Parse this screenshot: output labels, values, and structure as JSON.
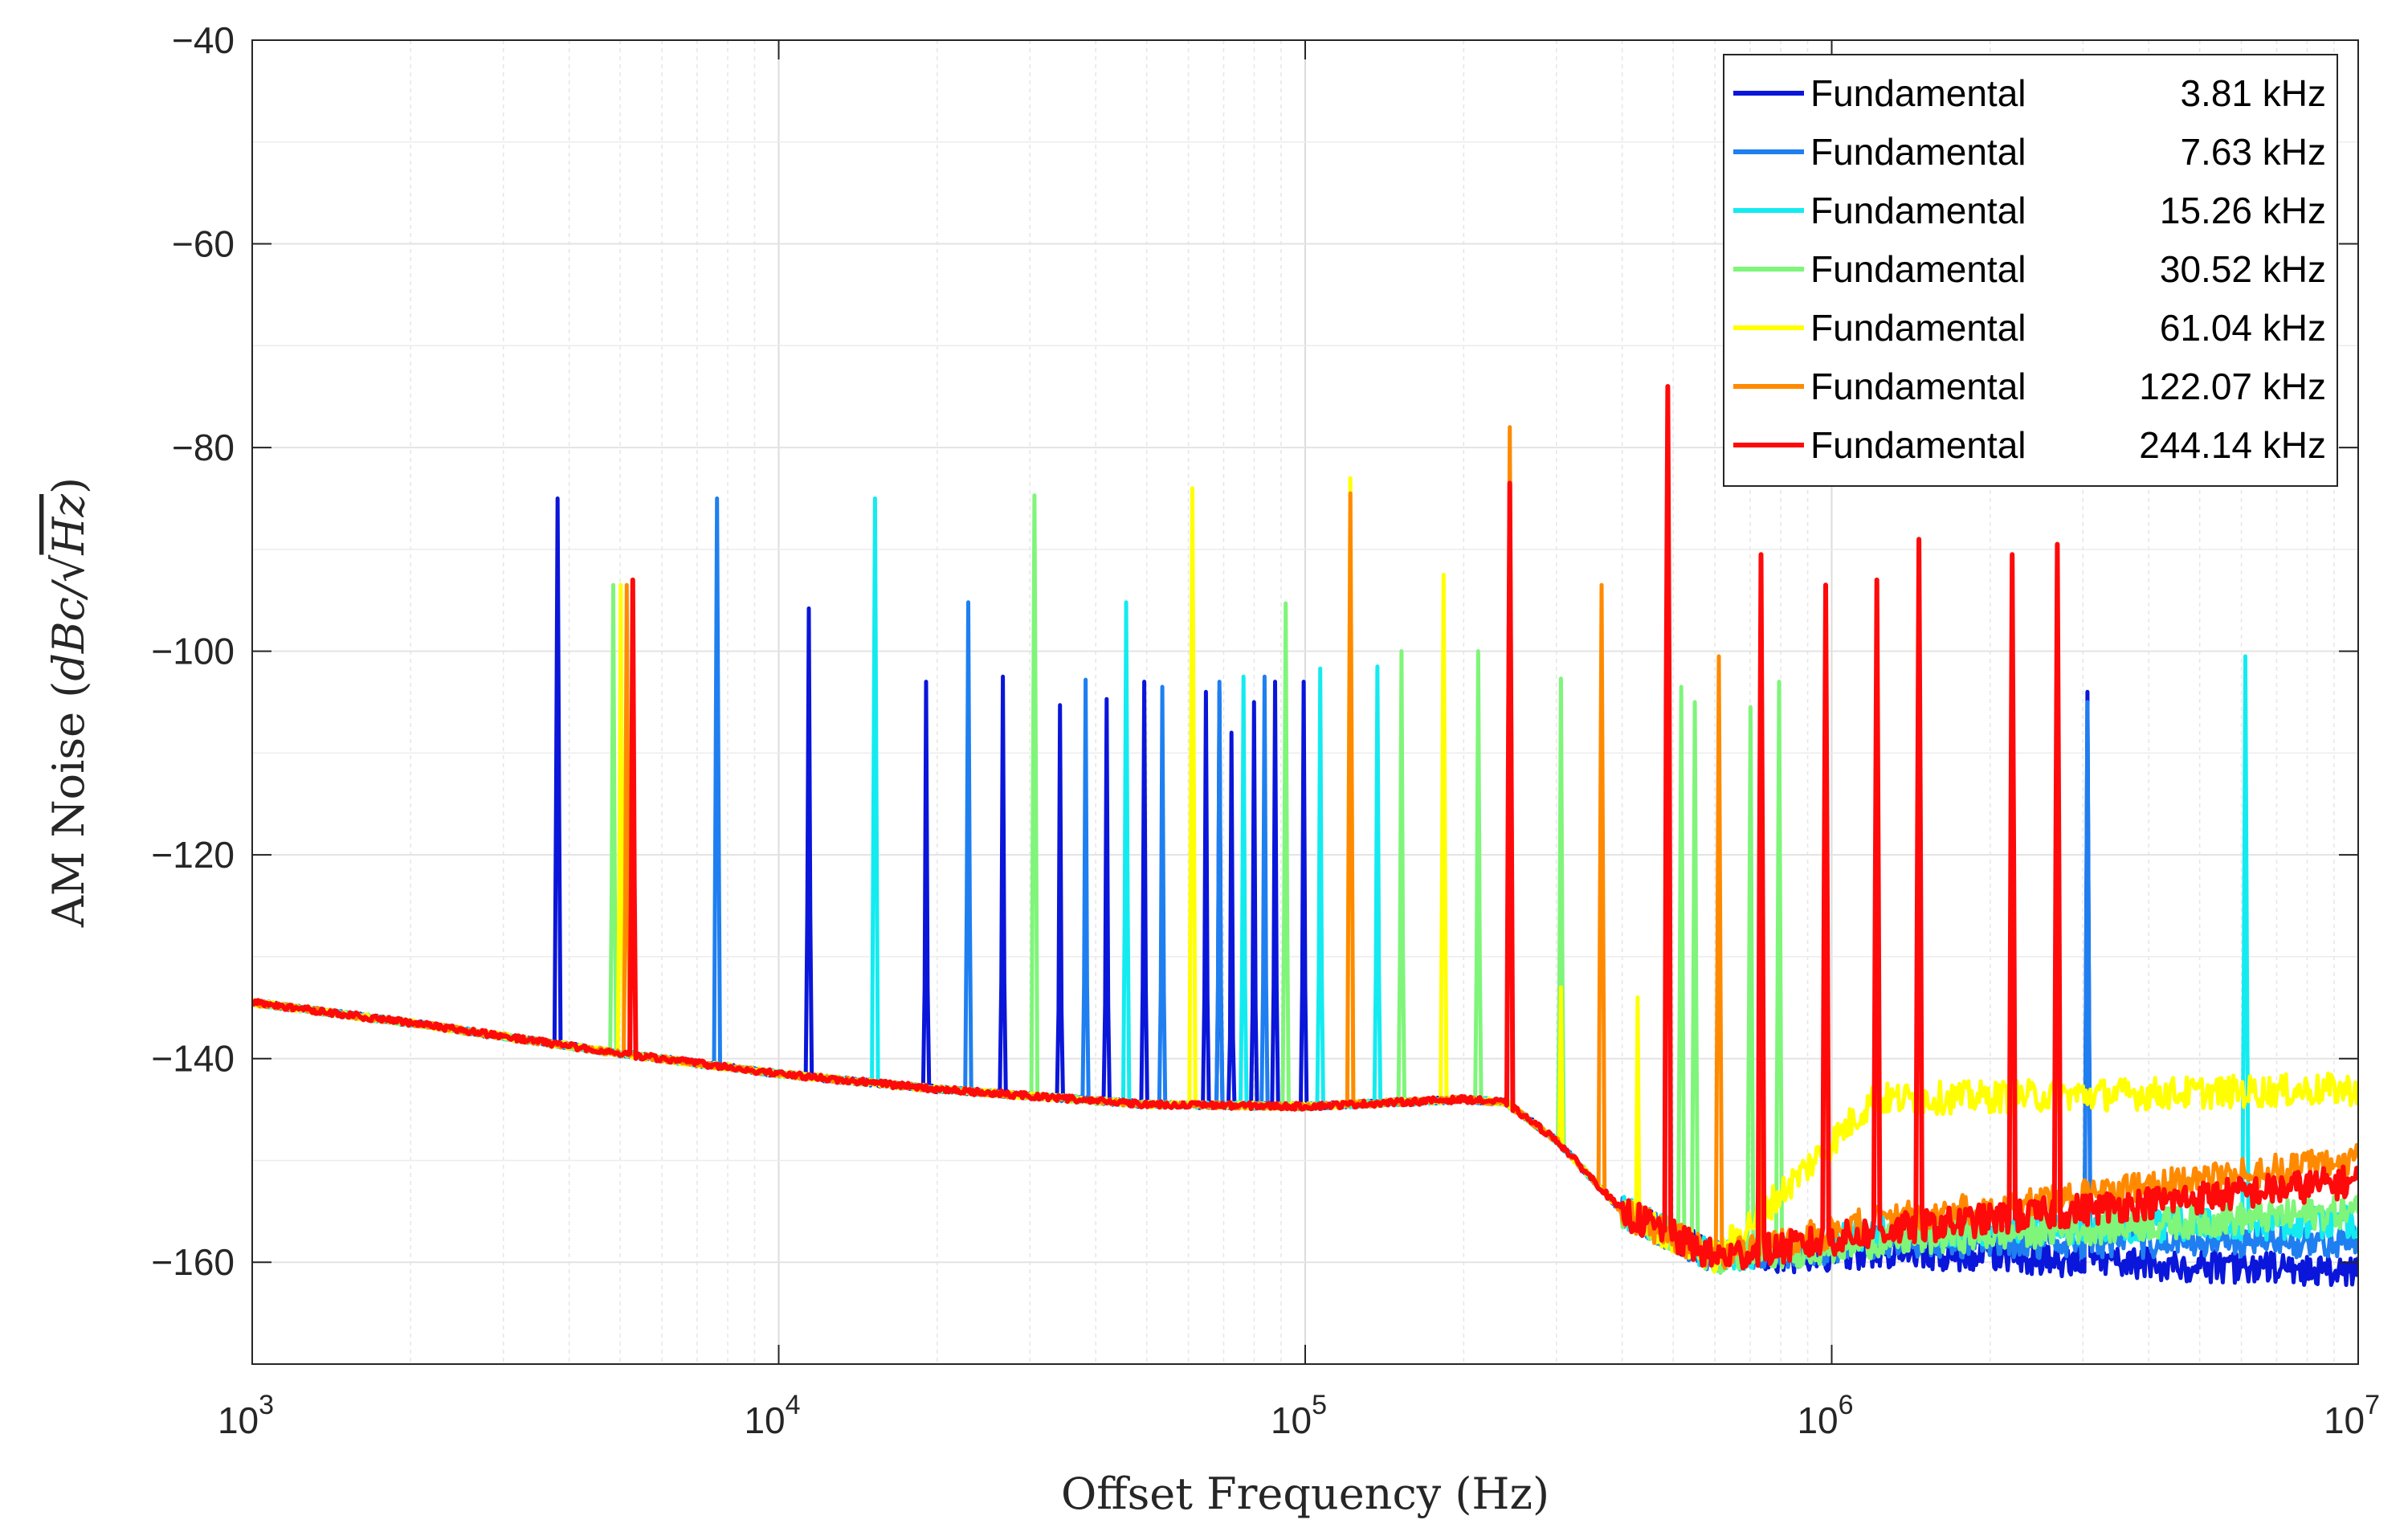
{
  "chart_data": {
    "type": "line",
    "xscale": "log",
    "xlim": [
      1000,
      10000000
    ],
    "ylim": [
      -170,
      -40
    ],
    "xlabel": "Offset Frequency (Hz)",
    "ylabel": "AM Noise (dBc/√Hz)",
    "ylabel_parts": {
      "prefix": "AM Noise (",
      "math": "dBc/",
      "radicand": "Hz",
      "suffix": ")"
    },
    "grid": true,
    "legend_position": "top-right",
    "x_ticks": [
      {
        "value": 1000,
        "base": "10",
        "exp": "3"
      },
      {
        "value": 10000,
        "base": "10",
        "exp": "4"
      },
      {
        "value": 100000,
        "base": "10",
        "exp": "5"
      },
      {
        "value": 1000000,
        "base": "10",
        "exp": "6"
      },
      {
        "value": 10000000,
        "base": "10",
        "exp": "7"
      }
    ],
    "y_ticks": [
      {
        "value": -40,
        "label": "−40"
      },
      {
        "value": -60,
        "label": "−60"
      },
      {
        "value": -80,
        "label": "−80"
      },
      {
        "value": -100,
        "label": "−100"
      },
      {
        "value": -120,
        "label": "−120"
      },
      {
        "value": -140,
        "label": "−140"
      },
      {
        "value": -160,
        "label": "−160"
      }
    ],
    "baseline": {
      "x": [
        1000,
        2000,
        5000,
        10000,
        20000,
        50000,
        100000,
        200000,
        240000,
        300000,
        400000,
        600000,
        1000000,
        3000000,
        10000000
      ],
      "y": [
        -134.5,
        -136.5,
        -139.5,
        -141.5,
        -143,
        -144.5,
        -144.7,
        -144,
        -144.3,
        -148,
        -155,
        -159.5,
        -160,
        -160,
        -160
      ]
    },
    "series": [
      {
        "name": "Fundamental",
        "freq_label": "3.81 kHz",
        "color": "#0a16d9",
        "spurs": [
          [
            3810,
            -85
          ],
          [
            5300,
            -93
          ],
          [
            11430,
            -95.8
          ],
          [
            19050,
            -103
          ],
          [
            26670,
            -102.5
          ],
          [
            34290,
            -105.3
          ],
          [
            41910,
            -104.7
          ],
          [
            49530,
            -103
          ],
          [
            64770,
            -104
          ],
          [
            68580,
            -104
          ],
          [
            72390,
            -108
          ],
          [
            80010,
            -105
          ],
          [
            87630,
            -103
          ],
          [
            99060,
            -103
          ],
          [
            3050000,
            -104
          ]
        ],
        "tail": {
          "level": -159,
          "end": -161
        }
      },
      {
        "name": "Fundamental",
        "freq_label": "7.63 kHz",
        "color": "#1f7ff0",
        "spurs": [
          [
            7630,
            -85
          ],
          [
            22890,
            -95.2
          ],
          [
            38150,
            -102.8
          ],
          [
            53410,
            -103.5
          ],
          [
            68670,
            -103
          ],
          [
            83930,
            -102.5
          ],
          [
            3050000,
            -105
          ]
        ],
        "tail": {
          "level": -158,
          "end": -158
        }
      },
      {
        "name": "Fundamental",
        "freq_label": "15.26 kHz",
        "color": "#14ebf0",
        "spurs": [
          [
            15260,
            -85
          ],
          [
            45780,
            -95.2
          ],
          [
            76300,
            -102.5
          ],
          [
            106820,
            -101.7
          ],
          [
            137340,
            -101.5
          ],
          [
            6100000,
            -100.5
          ]
        ],
        "tail": {
          "level": -157,
          "end": -156
        }
      },
      {
        "name": "Fundamental",
        "freq_label": "30.52 kHz",
        "color": "#7ff57a",
        "spurs": [
          [
            4850,
            -93.5
          ],
          [
            30520,
            -84.7
          ],
          [
            91560,
            -95.3
          ],
          [
            152600,
            -100
          ],
          [
            213640,
            -100
          ],
          [
            305200,
            -102.7
          ],
          [
            518840,
            -103.5
          ],
          [
            549360,
            -105
          ],
          [
            701960,
            -105.5
          ],
          [
            793520,
            -103
          ]
        ],
        "tail": {
          "level": -158,
          "end": -155
        }
      },
      {
        "name": "Fundamental",
        "freq_label": "61.04 kHz",
        "color": "#ffff00",
        "spurs": [
          [
            5000,
            -93.5
          ],
          [
            61040,
            -84
          ],
          [
            122080,
            -83
          ],
          [
            183120,
            -92.5
          ],
          [
            305200,
            -133
          ],
          [
            427280,
            -134
          ]
        ],
        "tail": {
          "level": -144,
          "end": -143
        }
      },
      {
        "name": "Fundamental",
        "freq_label": "122.07 kHz",
        "color": "#ff8a00",
        "spurs": [
          [
            5150,
            -93.5
          ],
          [
            122070,
            -84.5
          ],
          [
            244140,
            -78
          ],
          [
            366210,
            -93.5
          ],
          [
            610350,
            -100.5
          ],
          [
            732420,
            -135
          ]
        ],
        "tail": {
          "level": -156,
          "end": -150
        }
      },
      {
        "name": "Fundamental",
        "freq_label": "244.14 kHz",
        "color": "#ff0a0a",
        "spurs": [
          [
            5300,
            -93
          ],
          [
            244140,
            -83.5
          ],
          [
            488280,
            -74
          ],
          [
            732420,
            -90.5
          ],
          [
            976560,
            -93.5
          ],
          [
            1220700,
            -93
          ],
          [
            1464840,
            -89
          ],
          [
            2197260,
            -90.5
          ],
          [
            2685540,
            -89.5
          ]
        ],
        "tail": {
          "level": -157,
          "end": -152
        }
      }
    ]
  }
}
